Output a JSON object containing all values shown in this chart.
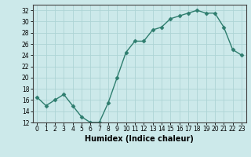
{
  "x": [
    0,
    1,
    2,
    3,
    4,
    5,
    6,
    7,
    8,
    9,
    10,
    11,
    12,
    13,
    14,
    15,
    16,
    17,
    18,
    19,
    20,
    21,
    22,
    23
  ],
  "y": [
    16.5,
    15.0,
    16.0,
    17.0,
    15.0,
    13.0,
    12.0,
    12.0,
    15.5,
    20.0,
    24.5,
    26.5,
    26.5,
    28.5,
    29.0,
    30.5,
    31.0,
    31.5,
    32.0,
    31.5,
    31.5,
    29.0,
    25.0,
    24.0
  ],
  "line_color": "#2e7d6e",
  "marker": "D",
  "markersize": 2.5,
  "linewidth": 1.0,
  "bg_color": "#cce9ea",
  "grid_color": "#aed4d5",
  "xlabel": "Humidex (Indice chaleur)",
  "ylim": [
    12,
    33
  ],
  "xlim": [
    -0.5,
    23.5
  ],
  "yticks": [
    12,
    14,
    16,
    18,
    20,
    22,
    24,
    26,
    28,
    30,
    32
  ],
  "xticks": [
    0,
    1,
    2,
    3,
    4,
    5,
    6,
    7,
    8,
    9,
    10,
    11,
    12,
    13,
    14,
    15,
    16,
    17,
    18,
    19,
    20,
    21,
    22,
    23
  ],
  "tick_fontsize": 5.5,
  "xlabel_fontsize": 7.0
}
